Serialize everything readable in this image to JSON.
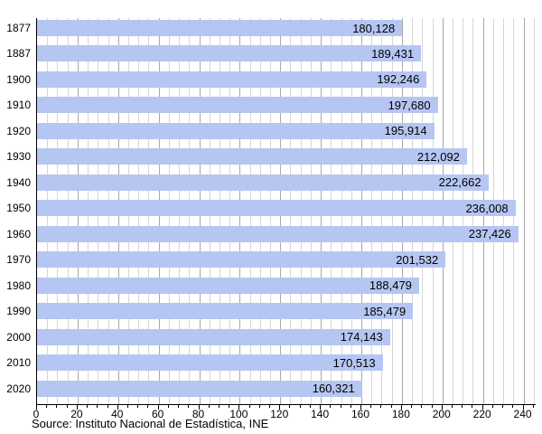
{
  "chart_data": {
    "type": "bar",
    "orientation": "horizontal",
    "title": "",
    "source_note": "Source: Instituto Nacional de Estadística, INE",
    "categories": [
      "1877",
      "1887",
      "1900",
      "1910",
      "1920",
      "1930",
      "1940",
      "1950",
      "1960",
      "1970",
      "1980",
      "1990",
      "2000",
      "2010",
      "2020"
    ],
    "values": [
      180128,
      189431,
      192246,
      197680,
      195914,
      212092,
      222662,
      236008,
      237426,
      201532,
      188479,
      185479,
      174143,
      170513,
      160321
    ],
    "value_labels": [
      "180,128",
      "189,431",
      "192,246",
      "197,680",
      "195,914",
      "212,092",
      "222,662",
      "236,008",
      "237,426",
      "201,532",
      "188,479",
      "185,479",
      "174,143",
      "170,513",
      "160,321"
    ],
    "value_scale_divisor": 1000,
    "xlabel": "",
    "ylabel": "",
    "xlim": [
      0,
      240
    ],
    "axis_max_units": 246,
    "grid_max_units": 245,
    "x_major_tick_step": 20,
    "x_minor_tick_step": 5,
    "x_tick_labels": [
      "0",
      "20",
      "40",
      "60",
      "80",
      "100",
      "120",
      "140",
      "160",
      "180",
      "200",
      "220",
      "240"
    ],
    "grid": true,
    "legend": "none",
    "colors": {
      "bar_fill": "#b6c6f2",
      "minor_gridline": "#d6d6d6",
      "major_gridline": "#a8a8a8",
      "axis_line": "#000000",
      "label_text": "#000000"
    }
  }
}
